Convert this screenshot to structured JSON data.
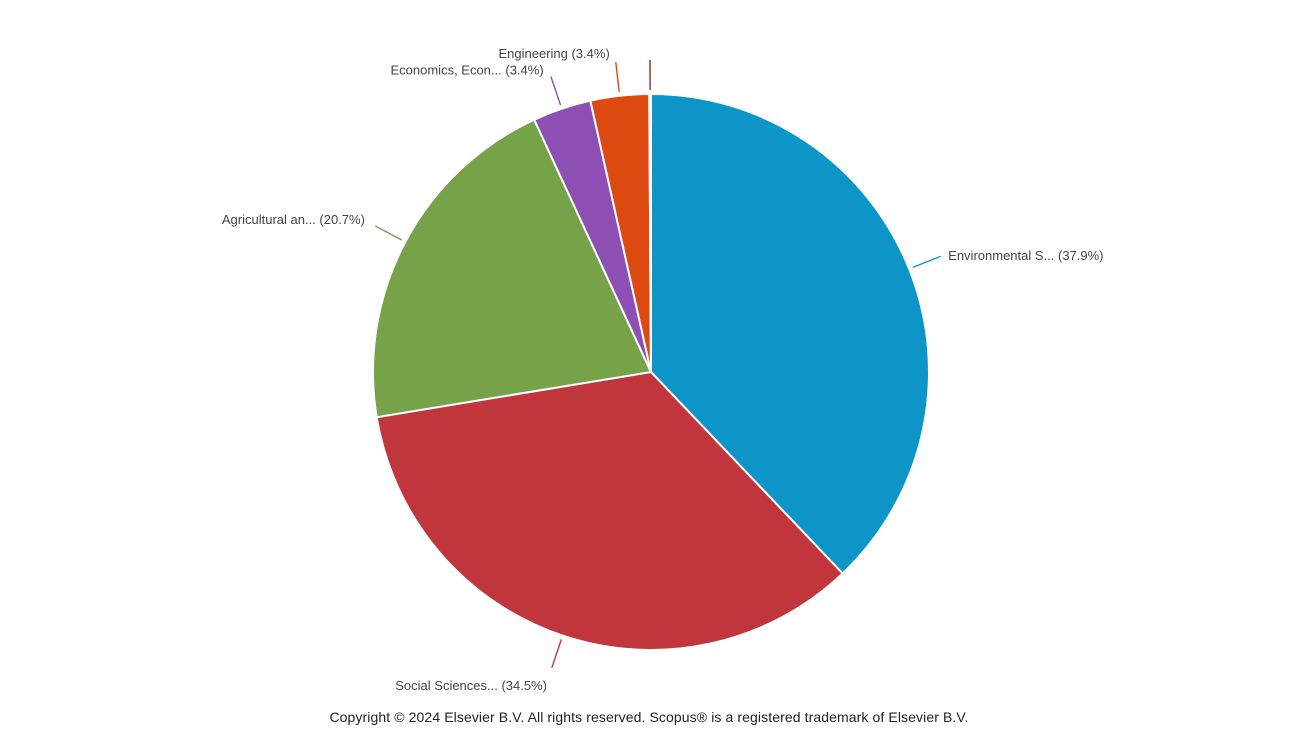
{
  "chart_data": {
    "type": "pie",
    "title": "",
    "slices": [
      {
        "label": "Environmental S... (37.9%)",
        "category": "Environmental S...",
        "value": 37.9,
        "color": "#0E95C8"
      },
      {
        "label": "Social Sciences... (34.5%)",
        "category": "Social Sciences...",
        "value": 34.5,
        "color": "#C1353C"
      },
      {
        "label": "Agricultural an... (20.7%)",
        "category": "Agricultural an...",
        "value": 20.7,
        "color": "#76A24A"
      },
      {
        "label": "Economics, Econ... (3.4%)",
        "category": "Economics, Econ...",
        "value": 3.4,
        "color": "#8E4FB5"
      },
      {
        "label": "Engineering (3.4%)",
        "category": "Engineering",
        "value": 3.4,
        "color": "#DC4A12"
      },
      {
        "label": "",
        "category": "",
        "value": 0.1,
        "color": "#8B2A2A"
      }
    ],
    "start_angle_deg": 0,
    "direction": "clockwise",
    "legend": "none"
  },
  "footer": {
    "copyright": "Copyright © 2024 Elsevier B.V. All rights reserved. Scopus® is a registered trademark of Elsevier B.V."
  }
}
